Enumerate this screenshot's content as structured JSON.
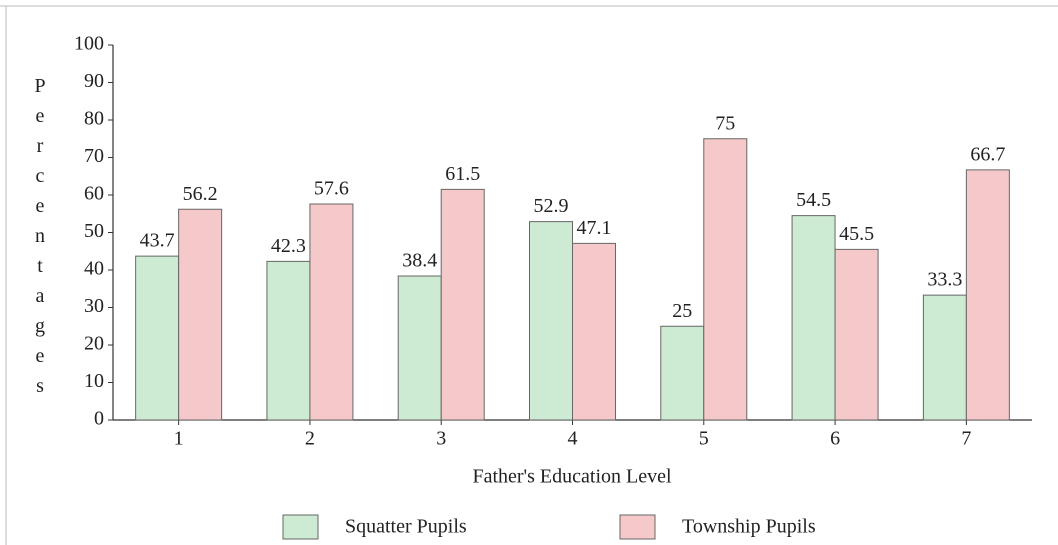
{
  "chart_data": {
    "type": "bar",
    "x_label": "Father's Education Level",
    "y_label": "Percentages",
    "categories": [
      "1",
      "2",
      "3",
      "4",
      "5",
      "6",
      "7"
    ],
    "series": [
      {
        "name": "Squatter Pupils",
        "color": "#cdebd3",
        "values": [
          43.7,
          42.3,
          38.4,
          52.9,
          25,
          54.5,
          33.3
        ]
      },
      {
        "name": "Township Pupils",
        "color": "#f5c9c9",
        "values": [
          56.2,
          57.6,
          61.5,
          47.1,
          75,
          45.5,
          66.7
        ]
      }
    ],
    "ylim": [
      0,
      100
    ],
    "yticks": [
      0,
      10,
      20,
      30,
      40,
      50,
      60,
      70,
      80,
      90,
      100
    ],
    "grid": false,
    "legend": "bottom"
  }
}
